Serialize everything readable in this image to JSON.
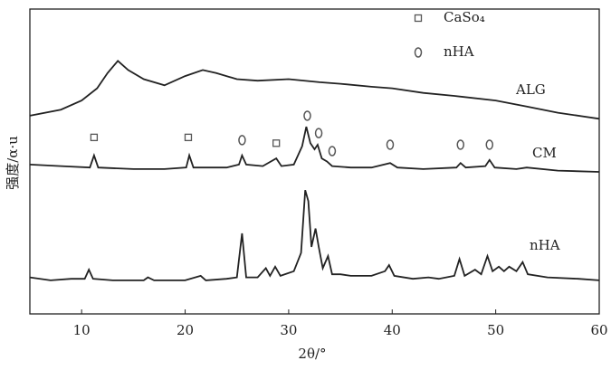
{
  "chart_data": {
    "type": "line",
    "xlabel": "2θ/°",
    "ylabel": "强度/α·u",
    "xlim": [
      5,
      60
    ],
    "xticks": [
      10,
      20,
      30,
      40,
      50,
      60
    ],
    "ylim": [
      0,
      100
    ],
    "series": [
      {
        "name": "ALG",
        "color": "#222222",
        "x": [
          5,
          8,
          10,
          11.5,
          12.5,
          13.5,
          14.5,
          16,
          18,
          20,
          21.7,
          23,
          25,
          27,
          30,
          33,
          35,
          38,
          40,
          43,
          46,
          50,
          53,
          56,
          60
        ],
        "values": [
          65,
          67,
          70,
          74,
          79,
          83,
          80,
          77,
          75,
          78,
          80,
          79,
          77,
          76.5,
          77,
          76,
          75.5,
          74.5,
          74,
          72.5,
          71.5,
          70,
          68,
          66,
          64
        ]
      },
      {
        "name": "CM",
        "color": "#222222",
        "x": [
          5,
          8,
          10.8,
          11.2,
          11.6,
          15,
          18,
          20.1,
          20.4,
          20.8,
          24,
          25.2,
          25.5,
          25.9,
          27.5,
          28.8,
          29.3,
          30.5,
          31.3,
          31.7,
          32.1,
          32.5,
          32.8,
          33.2,
          33.7,
          34.2,
          36,
          38,
          39.8,
          40.5,
          43,
          46.2,
          46.6,
          47.1,
          49,
          49.4,
          49.9,
          52,
          53,
          56,
          60
        ],
        "values": [
          49,
          48.5,
          48,
          52,
          48,
          47.5,
          47.5,
          48,
          52,
          48,
          48,
          49,
          52,
          49,
          48.5,
          51,
          48.5,
          49,
          55,
          61.4,
          56,
          54,
          55.5,
          51,
          50,
          48.5,
          48,
          48,
          49.5,
          48,
          47.5,
          48,
          49.5,
          48,
          48.5,
          50.5,
          48,
          47.5,
          48,
          47,
          46.6
        ]
      },
      {
        "name": "nHA",
        "color": "#222222",
        "x": [
          5,
          7,
          9,
          10.3,
          10.7,
          11.1,
          13,
          16,
          16.4,
          17,
          20,
          21.5,
          22,
          24,
          25,
          25.5,
          25.9,
          27,
          27.8,
          28.2,
          28.7,
          29.2,
          30.5,
          31.2,
          31.6,
          31.9,
          32.2,
          32.6,
          32.9,
          33.3,
          33.8,
          34.2,
          35,
          36,
          38,
          39.3,
          39.7,
          40.2,
          42,
          43.5,
          44.5,
          46,
          46.5,
          47,
          48,
          48.6,
          49.2,
          49.7,
          50.3,
          50.8,
          51.3,
          52,
          52.6,
          53.1,
          55,
          58,
          60
        ],
        "values": [
          12,
          11,
          11.5,
          11.5,
          14.5,
          11.5,
          11,
          11,
          12,
          11,
          11,
          12.5,
          11,
          11.5,
          12,
          26.4,
          12,
          12,
          15,
          12.5,
          15.5,
          12.5,
          14,
          20,
          40.6,
          37,
          22,
          28,
          22,
          15,
          19,
          13,
          13,
          12.5,
          12.5,
          14,
          16,
          12.5,
          11.5,
          12,
          11.5,
          12.5,
          18,
          12.5,
          14.5,
          13,
          19,
          14,
          15.5,
          14,
          15.5,
          14,
          17,
          13,
          12,
          11.5,
          11
        ]
      }
    ],
    "markers": [
      {
        "name": "CaSo₄",
        "symbol": "square",
        "x": [
          11.2,
          20.3,
          28.8
        ],
        "values": [
          57.9,
          57.9,
          56
        ]
      },
      {
        "name": "nHA",
        "symbol": "circle",
        "x": [
          25.5,
          31.8,
          32.9,
          34.2,
          39.8,
          46.6,
          49.4
        ],
        "values": [
          57,
          65,
          59.3,
          53.4,
          55.5,
          55.5,
          55.5
        ]
      }
    ]
  }
}
